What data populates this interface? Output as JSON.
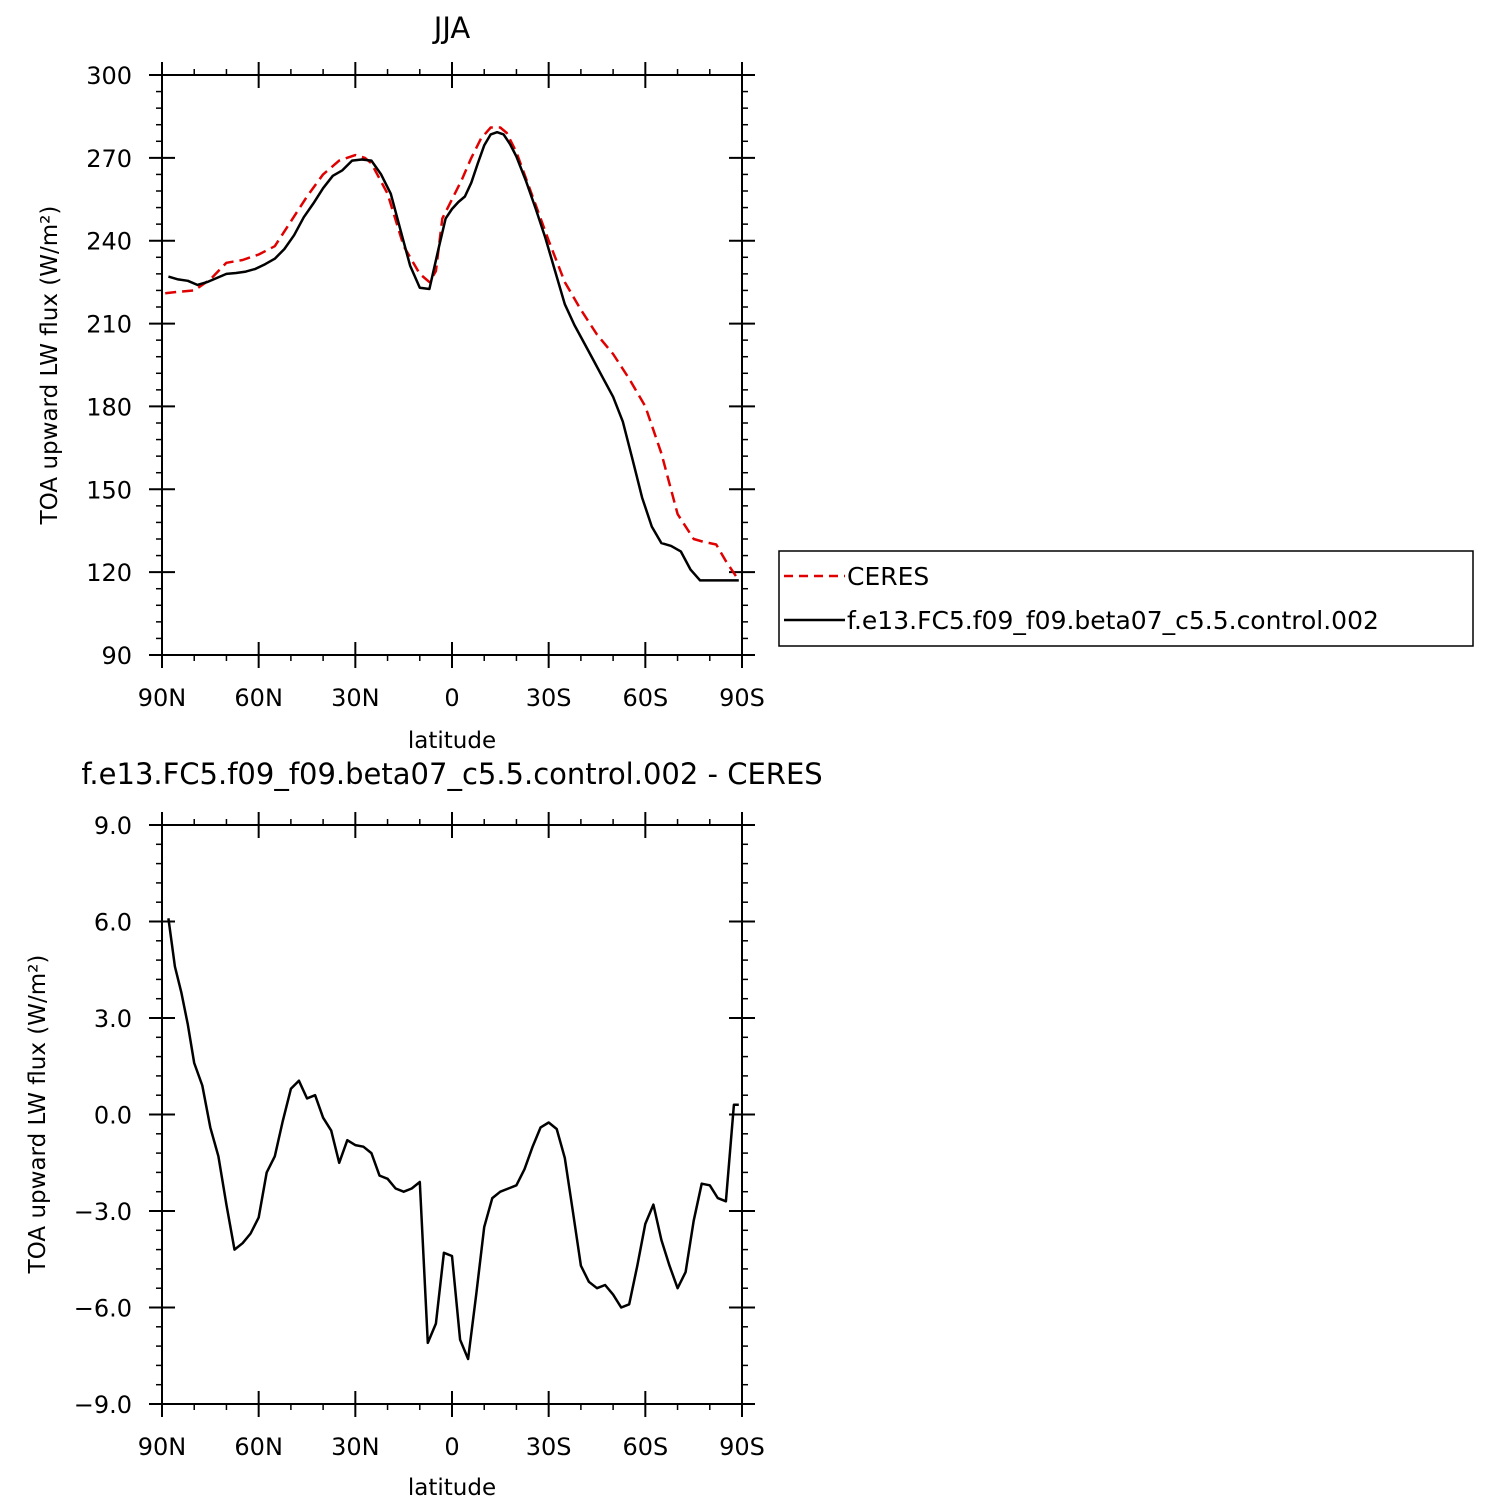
{
  "chart_data": [
    {
      "type": "line",
      "title": "JJA",
      "xlabel": "latitude",
      "ylabel": "TOA upward LW flux (W/m²)",
      "xlim": [
        -90,
        90
      ],
      "ylim": [
        90,
        300
      ],
      "xticks": [
        -90,
        -60,
        -30,
        0,
        30,
        60,
        90
      ],
      "xtick_labels": [
        "90N",
        "60N",
        "30N",
        "0",
        "30S",
        "60S",
        "90S"
      ],
      "yticks": [
        90,
        120,
        150,
        180,
        210,
        240,
        270,
        300
      ],
      "ytick_labels": [
        "90",
        "120",
        "150",
        "180",
        "210",
        "240",
        "270",
        "300"
      ],
      "grid": false,
      "legend": "right",
      "series": [
        {
          "name": "CERES",
          "color": "#e00000",
          "style": "dashed",
          "x": [
            -89,
            -85,
            -80,
            -75,
            -70,
            -65,
            -60,
            -55,
            -50,
            -45,
            -40,
            -35,
            -30,
            -27,
            -25,
            -20,
            -15,
            -10,
            -7,
            -5,
            -3,
            0,
            3,
            6,
            9,
            12,
            15,
            17,
            20,
            25,
            30,
            35,
            40,
            45,
            50,
            55,
            60,
            65,
            70,
            75,
            78,
            82,
            85,
            89
          ],
          "y": [
            221,
            221.5,
            222,
            226,
            232,
            233,
            235,
            238,
            247,
            256,
            264,
            269,
            271,
            270,
            268,
            257,
            238,
            228,
            225,
            229,
            248,
            255,
            262,
            270,
            277,
            281,
            281,
            279,
            272,
            256,
            240,
            225,
            215,
            206,
            199,
            190,
            180,
            163,
            141,
            132,
            131,
            130,
            124,
            117
          ]
        },
        {
          "name": "f.e13.FC5.f09_f09.beta07_c5.5.control.002",
          "color": "#000000",
          "style": "solid",
          "x": [
            -88,
            -85,
            -82,
            -79,
            -76,
            -73,
            -70,
            -67,
            -64,
            -61,
            -58,
            -55,
            -52,
            -49,
            -46,
            -43,
            -40,
            -37,
            -34,
            -31,
            -28,
            -25,
            -22,
            -19,
            -16,
            -13,
            -10,
            -7,
            -4,
            -2,
            0,
            2,
            4,
            6,
            8,
            10,
            12,
            14,
            16,
            18,
            20,
            23,
            26,
            29,
            32,
            35,
            38,
            41,
            44,
            47,
            50,
            53,
            56,
            59,
            62,
            65,
            68,
            71,
            74,
            77,
            80,
            83,
            86,
            89
          ],
          "y": [
            227,
            226,
            225.5,
            224,
            225,
            226.5,
            228,
            228.3,
            228.8,
            229.8,
            231.5,
            233.5,
            237,
            242,
            248.5,
            253.5,
            259,
            263.5,
            265.5,
            269,
            269.4,
            269,
            264,
            257,
            244,
            231,
            223,
            222.5,
            238,
            248,
            251.5,
            254,
            256,
            261,
            268,
            274.5,
            278.5,
            279.3,
            278.5,
            275,
            270.5,
            261.5,
            251.5,
            241,
            229,
            217,
            209.5,
            203,
            196.5,
            190,
            183.5,
            174.5,
            161,
            147,
            136.5,
            130.5,
            129.5,
            127.5,
            121,
            117,
            117,
            117,
            117,
            117
          ]
        }
      ]
    },
    {
      "type": "line",
      "title": "f.e13.FC5.f09_f09.beta07_c5.5.control.002 - CERES",
      "xlabel": "latitude",
      "ylabel": "TOA upward LW flux (W/m²)",
      "xlim": [
        -90,
        90
      ],
      "ylim": [
        -9,
        9
      ],
      "xticks": [
        -90,
        -60,
        -30,
        0,
        30,
        60,
        90
      ],
      "xtick_labels": [
        "90N",
        "60N",
        "30N",
        "0",
        "30S",
        "60S",
        "90S"
      ],
      "yticks": [
        -9,
        -6,
        -3,
        0,
        3,
        6,
        9
      ],
      "ytick_labels": [
        "−9.0",
        "−6.0",
        "−3.0",
        "0.0",
        "3.0",
        "6.0",
        "9.0"
      ],
      "grid": false,
      "series": [
        {
          "color": "#000000",
          "style": "solid",
          "x": [
            -88,
            -86,
            -84,
            -82,
            -80,
            -77.5,
            -75,
            -72.5,
            -70,
            -67.5,
            -65,
            -62.5,
            -60,
            -57.5,
            -55,
            -52.5,
            -50,
            -47.5,
            -45,
            -42.5,
            -40,
            -37.5,
            -35,
            -32.5,
            -30,
            -27.5,
            -25,
            -22.5,
            -20,
            -17.5,
            -15,
            -12.5,
            -10,
            -7.5,
            -5,
            -2.5,
            0,
            2.5,
            5,
            7.5,
            10,
            12.5,
            15,
            17.5,
            20,
            22.5,
            25,
            27.5,
            30,
            32.5,
            35,
            37.5,
            40,
            42.5,
            45,
            47.5,
            50,
            52.5,
            55,
            57.5,
            60,
            62.5,
            65,
            67.5,
            70,
            72.5,
            75,
            77.5,
            80,
            82.5,
            85,
            87.5,
            89
          ],
          "y": [
            6.1,
            4.6,
            3.8,
            2.8,
            1.6,
            0.9,
            -0.4,
            -1.3,
            -2.8,
            -4.2,
            -4.0,
            -3.7,
            -3.2,
            -1.8,
            -1.3,
            -0.2,
            0.8,
            1.05,
            0.5,
            0.6,
            -0.1,
            -0.5,
            -1.5,
            -0.8,
            -0.95,
            -1.0,
            -1.2,
            -1.9,
            -2.0,
            -2.3,
            -2.4,
            -2.3,
            -2.1,
            -7.1,
            -6.5,
            -4.3,
            -4.4,
            -7.0,
            -7.6,
            -5.6,
            -3.5,
            -2.6,
            -2.4,
            -2.3,
            -2.2,
            -1.7,
            -1.0,
            -0.4,
            -0.25,
            -0.45,
            -1.35,
            -3.0,
            -4.7,
            -5.2,
            -5.4,
            -5.3,
            -5.6,
            -6.0,
            -5.9,
            -4.7,
            -3.4,
            -2.8,
            -3.9,
            -4.7,
            -5.4,
            -4.9,
            -3.3,
            -2.15,
            -2.2,
            -2.6,
            -2.7,
            0.3,
            0.3
          ]
        }
      ]
    }
  ]
}
